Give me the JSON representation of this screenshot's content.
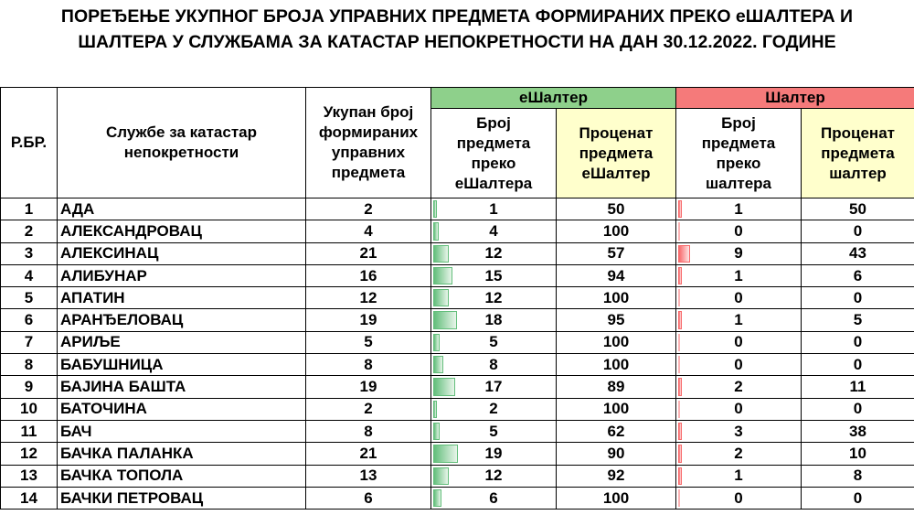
{
  "title": {
    "line1": "ПОРЕЂЕЊЕ УКУПНОГ БРОЈА УПРАВНИХ ПРЕДМЕТА ФОРМИРАНИХ ПРЕКО еШАЛТЕРА И",
    "line2": "ШАЛТЕРА У СЛУЖБАМА ЗА КАТАСТАР НЕПОКРЕТНОСТИ НА ДАН 30.12.2022. ГОДИНЕ"
  },
  "headers": {
    "rb": "Р.БР.",
    "office": "Службе за катастар непокретности",
    "total": "Укупан број формираних управних предмета",
    "eshalter_group": "еШалтер",
    "eshalter_count": "Број предмета преко еШалтера",
    "eshalter_pct": "Проценат предмета еШалтер",
    "shalter_group": "Шалтер",
    "shalter_count": "Број предмета преко шалтера",
    "shalter_pct": "Проценат предмета шалтер"
  },
  "colors": {
    "eshalter_header": "#8ed08b",
    "shalter_header": "#f57a7a",
    "highlight": "#ffffcc",
    "green_bar": "#63be7b",
    "red_bar": "#f8696b"
  },
  "rows": [
    {
      "rb": "1",
      "name": "АДА",
      "total": "2",
      "e_count": "1",
      "e_pct": "50",
      "s_count": "1",
      "s_pct": "50"
    },
    {
      "rb": "2",
      "name": "АЛЕКСАНДРОВАЦ",
      "total": "4",
      "e_count": "4",
      "e_pct": "100",
      "s_count": "0",
      "s_pct": "0"
    },
    {
      "rb": "3",
      "name": "АЛЕКСИНАЦ",
      "total": "21",
      "e_count": "12",
      "e_pct": "57",
      "s_count": "9",
      "s_pct": "43"
    },
    {
      "rb": "4",
      "name": "АЛИБУНАР",
      "total": "16",
      "e_count": "15",
      "e_pct": "94",
      "s_count": "1",
      "s_pct": "6"
    },
    {
      "rb": "5",
      "name": "АПАТИН",
      "total": "12",
      "e_count": "12",
      "e_pct": "100",
      "s_count": "0",
      "s_pct": "0"
    },
    {
      "rb": "6",
      "name": "АРАНЂЕЛОВАЦ",
      "total": "19",
      "e_count": "18",
      "e_pct": "95",
      "s_count": "1",
      "s_pct": "5"
    },
    {
      "rb": "7",
      "name": "АРИЉЕ",
      "total": "5",
      "e_count": "5",
      "e_pct": "100",
      "s_count": "0",
      "s_pct": "0"
    },
    {
      "rb": "8",
      "name": "БАБУШНИЦА",
      "total": "8",
      "e_count": "8",
      "e_pct": "100",
      "s_count": "0",
      "s_pct": "0"
    },
    {
      "rb": "9",
      "name": "БАЈИНА БАШТА",
      "total": "19",
      "e_count": "17",
      "e_pct": "89",
      "s_count": "2",
      "s_pct": "11"
    },
    {
      "rb": "10",
      "name": "БАТОЧИНА",
      "total": "2",
      "e_count": "2",
      "e_pct": "100",
      "s_count": "0",
      "s_pct": "0"
    },
    {
      "rb": "11",
      "name": "БАЧ",
      "total": "8",
      "e_count": "5",
      "e_pct": "62",
      "s_count": "3",
      "s_pct": "38"
    },
    {
      "rb": "12",
      "name": "БАЧКА ПАЛАНКА",
      "total": "21",
      "e_count": "19",
      "e_pct": "90",
      "s_count": "2",
      "s_pct": "10"
    },
    {
      "rb": "13",
      "name": "БАЧКА ТОПОЛА",
      "total": "13",
      "e_count": "12",
      "e_pct": "92",
      "s_count": "1",
      "s_pct": "8"
    },
    {
      "rb": "14",
      "name": "БАЧКИ ПЕТРОВАЦ",
      "total": "6",
      "e_count": "6",
      "e_pct": "100",
      "s_count": "0",
      "s_pct": "0"
    }
  ]
}
